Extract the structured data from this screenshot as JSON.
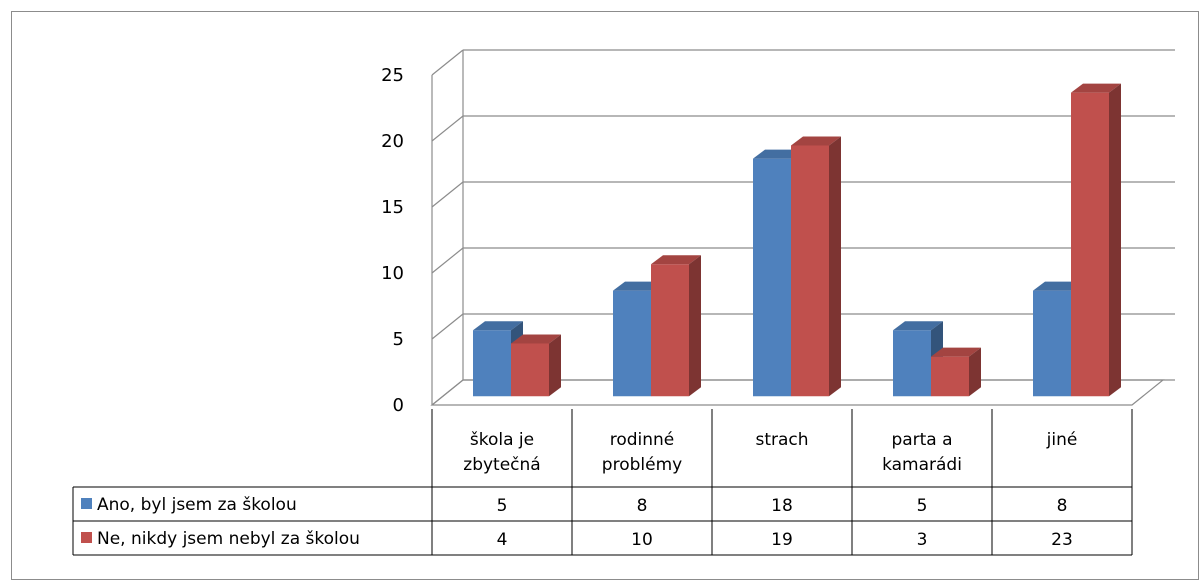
{
  "chart_data": {
    "type": "bar",
    "title": "",
    "xlabel": "",
    "ylabel": "",
    "ylim": [
      0,
      25
    ],
    "yticks": [
      "0",
      "5",
      "10",
      "15",
      "20",
      "25"
    ],
    "grid": true,
    "categories": [
      [
        "škola je",
        "zbytečná"
      ],
      [
        "rodinné",
        "problémy"
      ],
      [
        "strach"
      ],
      [
        "parta a",
        "kamarádi"
      ],
      [
        "jiné"
      ]
    ],
    "series": [
      {
        "name": "Ano, byl jsem za školou",
        "color": "#4f81bd",
        "values": [
          5,
          8,
          18,
          5,
          8
        ]
      },
      {
        "name": "Ne, nikdy jsem nebyl za školou",
        "color": "#c0504d",
        "values": [
          4,
          10,
          19,
          3,
          23
        ]
      }
    ],
    "data_table": true
  }
}
